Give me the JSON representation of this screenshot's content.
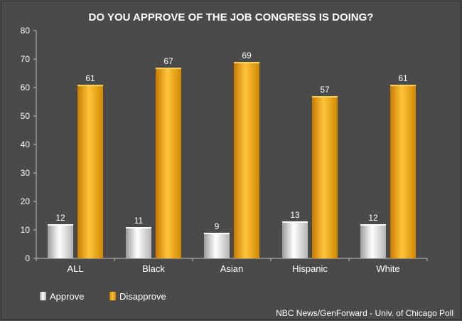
{
  "chart_data": {
    "type": "bar",
    "title": "DO YOU APPROVE OF THE JOB CONGRESS IS DOING?",
    "categories": [
      "ALL",
      "Black",
      "Asian",
      "Hispanic",
      "White"
    ],
    "series": [
      {
        "name": "Approve",
        "values": [
          12,
          11,
          9,
          13,
          12
        ],
        "color": "#e6e6e6"
      },
      {
        "name": "Disapprove",
        "values": [
          61,
          67,
          69,
          57,
          61
        ],
        "color": "#f0a000"
      }
    ],
    "ylim": [
      0,
      80
    ],
    "yticks": [
      0,
      10,
      20,
      30,
      40,
      50,
      60,
      70,
      80
    ],
    "grid": false,
    "legend_position": "bottom-left",
    "source": "NBC News/GenForward - Univ. of Chicago Poll",
    "colors": {
      "background": "#4a4a4a",
      "text": "#ffffff",
      "axis": "#bdbdbd"
    }
  }
}
